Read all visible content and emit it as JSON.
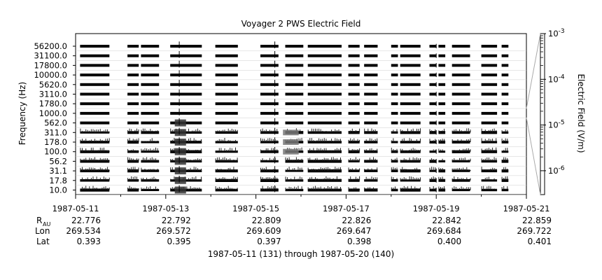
{
  "chart_data": {
    "type": "heatmap",
    "title": "Voyager 2 PWS Electric Field",
    "ylabel": "Frequency (Hz)",
    "colorbar_label": "Electric Field (V/m)",
    "colorbar_scale": "log",
    "colorbar_range": [
      3e-07,
      0.001
    ],
    "colorbar_ticks": [
      {
        "base": "10",
        "exp": "-3",
        "value": 0.001
      },
      {
        "base": "10",
        "exp": "-4",
        "value": 0.0001
      },
      {
        "base": "10",
        "exp": "-5",
        "value": 1e-05
      },
      {
        "base": "10",
        "exp": "-6",
        "value": 1e-06
      }
    ],
    "frequency_channels": [
      "56200.0",
      "31100.0",
      "17800.0",
      "10000.0",
      "5620.0",
      "3110.0",
      "1780.0",
      "1000.0",
      "562.0",
      "311.0",
      "178.0",
      "100.0",
      "56.2",
      "31.1",
      "17.8",
      "10.0"
    ],
    "x_range": [
      "1987-05-11",
      "1987-05-21"
    ],
    "x_ticks": [
      "1987-05-11",
      "1987-05-13",
      "1987-05-15",
      "1987-05-17",
      "1987-05-19",
      "1987-05-21"
    ],
    "data_gaps_days": [
      [
        0.0,
        0.1
      ],
      [
        0.75,
        1.15
      ],
      [
        1.4,
        1.45
      ],
      [
        1.85,
        2.1
      ],
      [
        2.8,
        3.1
      ],
      [
        3.6,
        4.1
      ],
      [
        4.5,
        4.65
      ],
      [
        5.05,
        5.15
      ],
      [
        5.9,
        6.05
      ],
      [
        6.3,
        6.4
      ],
      [
        6.7,
        7.0
      ],
      [
        7.15,
        7.2
      ],
      [
        7.65,
        7.85
      ],
      [
        8.0,
        8.05
      ],
      [
        8.2,
        8.35
      ],
      [
        8.75,
        9.0
      ],
      [
        9.35,
        9.45
      ],
      [
        9.6,
        10.0
      ]
    ],
    "enhancements": [
      {
        "start_day": 2.2,
        "end_day": 2.45,
        "channels": [
          "562.0",
          "311.0",
          "178.0",
          "100.0",
          "56.2",
          "31.1",
          "17.8",
          "10.0"
        ],
        "level": "strong"
      },
      {
        "start_day": 4.6,
        "end_day": 4.95,
        "channels": [
          "311.0",
          "178.0",
          "100.0"
        ],
        "level": "moderate"
      }
    ],
    "spikes": [
      {
        "day": 2.3,
        "level": "strong"
      },
      {
        "day": 4.42,
        "level": "strong"
      },
      {
        "day": 8.0,
        "level": "moderate"
      }
    ]
  },
  "ephemeris": {
    "labels": {
      "r": "R",
      "r_sub": "AU",
      "lon": "Lon",
      "lat": "Lat"
    },
    "columns": [
      {
        "date": "1987-05-11",
        "r": "22.776",
        "lon": "269.534",
        "lat": "0.393"
      },
      {
        "date": "1987-05-13",
        "r": "22.792",
        "lon": "269.572",
        "lat": "0.395"
      },
      {
        "date": "1987-05-15",
        "r": "22.809",
        "lon": "269.609",
        "lat": "0.397"
      },
      {
        "date": "1987-05-17",
        "r": "22.826",
        "lon": "269.647",
        "lat": "0.398"
      },
      {
        "date": "1987-05-19",
        "r": "22.842",
        "lon": "269.684",
        "lat": "0.400"
      },
      {
        "date": "1987-05-21",
        "r": "22.859",
        "lon": "269.722",
        "lat": "0.401"
      }
    ]
  },
  "footer": "1987-05-11 (131) through 1987-05-20 (140)"
}
